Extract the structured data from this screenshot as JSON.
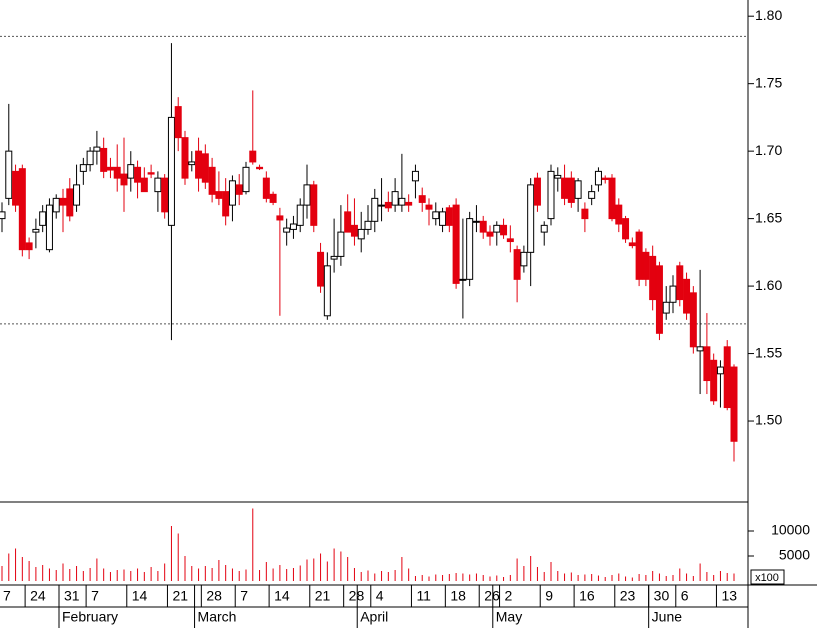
{
  "chart_data": {
    "type": "candlestick",
    "up_color": "#ffffff",
    "down_color": "#e3000f",
    "line_color": "#000000",
    "ylim": [
      1.44,
      1.812
    ],
    "yticks": [
      {
        "value": 1.5,
        "label": "1.50"
      },
      1.55,
      {
        "value": 1.6,
        "label": "1.60"
      },
      1.65,
      {
        "value": 1.7,
        "label": "1.70"
      },
      1.75,
      {
        "value": 1.8,
        "label": "1.80"
      }
    ],
    "reference_lines": [
      1.785,
      1.572
    ],
    "volume_color": "#e3000f",
    "volume_ylim": [
      0,
      15800
    ],
    "volume_yticks": [
      5000,
      10000
    ],
    "volume_unit": "x100",
    "categories": [
      "7",
      null,
      null,
      null,
      "24",
      null,
      null,
      null,
      null,
      "31",
      null,
      null,
      null,
      "7",
      null,
      null,
      null,
      null,
      null,
      "14",
      null,
      null,
      null,
      null,
      null,
      "21",
      null,
      null,
      null,
      null,
      "28",
      null,
      null,
      null,
      null,
      "7",
      null,
      null,
      null,
      null,
      "14",
      null,
      null,
      null,
      null,
      null,
      "21",
      null,
      null,
      null,
      null,
      "28",
      null,
      null,
      null,
      "4",
      null,
      null,
      null,
      null,
      null,
      "11",
      null,
      null,
      null,
      null,
      "18",
      null,
      null,
      null,
      null,
      "26",
      null,
      null,
      "2",
      null,
      null,
      null,
      null,
      null,
      "9",
      null,
      null,
      null,
      null,
      "16",
      null,
      null,
      null,
      null,
      null,
      "23",
      null,
      null,
      null,
      null,
      "30",
      null,
      null,
      null,
      "6",
      null,
      null,
      null,
      null,
      null,
      "13",
      null,
      null
    ],
    "months": [
      null,
      null,
      null,
      null,
      null,
      null,
      null,
      null,
      null,
      "February",
      null,
      null,
      null,
      null,
      null,
      null,
      null,
      null,
      null,
      null,
      null,
      null,
      null,
      null,
      null,
      null,
      null,
      null,
      null,
      "March",
      null,
      null,
      null,
      null,
      null,
      null,
      null,
      null,
      null,
      null,
      null,
      null,
      null,
      null,
      null,
      null,
      null,
      null,
      null,
      null,
      null,
      null,
      null,
      "April",
      null,
      null,
      null,
      null,
      null,
      null,
      null,
      null,
      null,
      null,
      null,
      null,
      null,
      null,
      null,
      null,
      null,
      null,
      null,
      "May",
      null,
      null,
      null,
      null,
      null,
      null,
      null,
      null,
      null,
      null,
      null,
      null,
      null,
      null,
      null,
      null,
      null,
      null,
      null,
      null,
      null,
      null,
      "June",
      null,
      null,
      null,
      null,
      null,
      null,
      null,
      null,
      null,
      null,
      null,
      null
    ],
    "candles": [
      [
        1.65,
        1.662,
        1.64,
        1.655
      ],
      [
        1.665,
        1.735,
        1.66,
        1.7
      ],
      [
        1.685,
        1.69,
        1.655,
        1.66
      ],
      [
        1.687,
        1.69,
        1.622,
        1.627
      ],
      [
        1.632,
        1.636,
        1.62,
        1.627
      ],
      [
        1.64,
        1.65,
        1.628,
        1.642
      ],
      [
        1.645,
        1.66,
        1.64,
        1.655
      ],
      [
        1.627,
        1.665,
        1.625,
        1.66
      ],
      [
        1.655,
        1.668,
        1.65,
        1.665
      ],
      [
        1.665,
        1.672,
        1.64,
        1.66
      ],
      [
        1.672,
        1.68,
        1.648,
        1.652
      ],
      [
        1.66,
        1.69,
        1.655,
        1.675
      ],
      [
        1.685,
        1.695,
        1.675,
        1.69
      ],
      [
        1.69,
        1.703,
        1.685,
        1.7
      ],
      [
        1.7,
        1.715,
        1.69,
        1.703
      ],
      [
        1.702,
        1.71,
        1.68,
        1.685
      ],
      [
        1.688,
        1.695,
        1.68,
        1.686
      ],
      [
        1.688,
        1.705,
        1.67,
        1.68
      ],
      [
        1.683,
        1.71,
        1.655,
        1.675
      ],
      [
        1.68,
        1.7,
        1.67,
        1.69
      ],
      [
        1.688,
        1.693,
        1.665,
        1.677
      ],
      [
        1.68,
        1.688,
        1.67,
        1.67
      ],
      [
        1.684,
        1.69,
        1.68,
        1.683
      ],
      [
        1.67,
        1.685,
        1.655,
        1.68
      ],
      [
        1.68,
        1.683,
        1.65,
        1.655
      ],
      [
        1.645,
        1.78,
        1.56,
        1.725
      ],
      [
        1.733,
        1.74,
        1.7,
        1.71
      ],
      [
        1.71,
        1.715,
        1.675,
        1.68
      ],
      [
        1.69,
        1.7,
        1.685,
        1.692
      ],
      [
        1.7,
        1.71,
        1.67,
        1.68
      ],
      [
        1.698,
        1.705,
        1.672,
        1.677
      ],
      [
        1.688,
        1.695,
        1.662,
        1.668
      ],
      [
        1.67,
        1.685,
        1.66,
        1.665
      ],
      [
        1.67,
        1.68,
        1.645,
        1.652
      ],
      [
        1.66,
        1.682,
        1.648,
        1.678
      ],
      [
        1.675,
        1.683,
        1.66,
        1.668
      ],
      [
        1.67,
        1.692,
        1.668,
        1.688
      ],
      [
        1.7,
        1.745,
        1.69,
        1.692
      ],
      [
        1.688,
        1.69,
        1.686,
        1.687
      ],
      [
        1.68,
        1.685,
        1.662,
        1.665
      ],
      [
        1.668,
        1.67,
        1.66,
        1.662
      ],
      [
        1.652,
        1.658,
        1.578,
        1.649
      ],
      [
        1.64,
        1.65,
        1.63,
        1.643
      ],
      [
        1.642,
        1.652,
        1.635,
        1.646
      ],
      [
        1.645,
        1.665,
        1.64,
        1.66
      ],
      [
        1.66,
        1.69,
        1.65,
        1.675
      ],
      [
        1.675,
        1.678,
        1.64,
        1.645
      ],
      [
        1.625,
        1.632,
        1.595,
        1.6
      ],
      [
        1.578,
        1.625,
        1.575,
        1.615
      ],
      [
        1.62,
        1.65,
        1.61,
        1.622
      ],
      [
        1.622,
        1.66,
        1.615,
        1.64
      ],
      [
        1.655,
        1.668,
        1.64,
        1.64
      ],
      [
        1.645,
        1.665,
        1.63,
        1.637
      ],
      [
        1.635,
        1.655,
        1.625,
        1.642
      ],
      [
        1.642,
        1.66,
        1.638,
        1.648
      ],
      [
        1.648,
        1.672,
        1.64,
        1.665
      ],
      [
        1.66,
        1.68,
        1.648,
        1.66
      ],
      [
        1.662,
        1.67,
        1.655,
        1.658
      ],
      [
        1.66,
        1.68,
        1.655,
        1.67
      ],
      [
        1.66,
        1.698,
        1.655,
        1.665
      ],
      [
        1.662,
        1.668,
        1.655,
        1.66
      ],
      [
        1.678,
        1.69,
        1.665,
        1.685
      ],
      [
        1.667,
        1.673,
        1.655,
        1.662
      ],
      [
        1.66,
        1.665,
        1.645,
        1.657
      ],
      [
        1.65,
        1.662,
        1.645,
        1.655
      ],
      [
        1.645,
        1.658,
        1.64,
        1.655
      ],
      [
        1.658,
        1.66,
        1.64,
        1.645
      ],
      [
        1.66,
        1.665,
        1.598,
        1.602
      ],
      [
        1.605,
        1.65,
        1.576,
        1.605
      ],
      [
        1.605,
        1.655,
        1.6,
        1.65
      ],
      [
        1.648,
        1.66,
        1.64,
        1.648
      ],
      [
        1.648,
        1.652,
        1.635,
        1.64
      ],
      [
        1.64,
        1.645,
        1.63,
        1.637
      ],
      [
        1.64,
        1.648,
        1.63,
        1.645
      ],
      [
        1.645,
        1.65,
        1.635,
        1.638
      ],
      [
        1.635,
        1.645,
        1.625,
        1.633
      ],
      [
        1.627,
        1.63,
        1.588,
        1.605
      ],
      [
        1.615,
        1.63,
        1.61,
        1.625
      ],
      [
        1.625,
        1.68,
        1.6,
        1.675
      ],
      [
        1.68,
        1.684,
        1.655,
        1.66
      ],
      [
        1.64,
        1.648,
        1.63,
        1.645
      ],
      [
        1.65,
        1.69,
        1.645,
        1.685
      ],
      [
        1.68,
        1.688,
        1.67,
        1.682
      ],
      [
        1.68,
        1.69,
        1.66,
        1.665
      ],
      [
        1.68,
        1.685,
        1.658,
        1.662
      ],
      [
        1.665,
        1.68,
        1.655,
        1.678
      ],
      [
        1.657,
        1.662,
        1.64,
        1.65
      ],
      [
        1.665,
        1.675,
        1.66,
        1.67
      ],
      [
        1.675,
        1.688,
        1.67,
        1.685
      ],
      [
        1.68,
        1.682,
        1.676,
        1.679
      ],
      [
        1.68,
        1.683,
        1.648,
        1.65
      ],
      [
        1.66,
        1.665,
        1.64,
        1.646
      ],
      [
        1.65,
        1.652,
        1.632,
        1.635
      ],
      [
        1.632,
        1.636,
        1.628,
        1.63
      ],
      [
        1.64,
        1.642,
        1.6,
        1.605
      ],
      [
        1.625,
        1.628,
        1.6,
        1.605
      ],
      [
        1.622,
        1.63,
        1.582,
        1.59
      ],
      [
        1.615,
        1.618,
        1.56,
        1.565
      ],
      [
        1.58,
        1.6,
        1.575,
        1.588
      ],
      [
        1.588,
        1.608,
        1.58,
        1.6
      ],
      [
        1.615,
        1.618,
        1.585,
        1.59
      ],
      [
        1.605,
        1.61,
        1.575,
        1.58
      ],
      [
        1.595,
        1.6,
        1.55,
        1.555
      ],
      [
        1.552,
        1.612,
        1.52,
        1.555
      ],
      [
        1.555,
        1.58,
        1.52,
        1.53
      ],
      [
        1.545,
        1.55,
        1.512,
        1.515
      ],
      [
        1.535,
        1.545,
        1.51,
        1.54
      ],
      [
        1.555,
        1.56,
        1.508,
        1.51
      ],
      [
        1.54,
        1.542,
        1.47,
        1.485
      ]
    ],
    "volumes": [
      3000,
      5500,
      6500,
      4800,
      4000,
      2800,
      3200,
      2500,
      2200,
      3500,
      2400,
      3000,
      2000,
      2600,
      4500,
      2500,
      1800,
      2200,
      2300,
      2000,
      2500,
      1800,
      2800,
      2000,
      3500,
      11000,
      9500,
      5000,
      3000,
      2500,
      3000,
      2600,
      4200,
      3200,
      2500,
      2000,
      2300,
      14500,
      2200,
      3800,
      2500,
      3200,
      2400,
      2600,
      3100,
      4300,
      4500,
      5500,
      3900,
      6500,
      5900,
      4800,
      2600,
      1800,
      2100,
      1500,
      2000,
      1800,
      2200,
      4800,
      2500,
      1000,
      1200,
      900,
      1300,
      1200,
      1400,
      1600,
      1500,
      1300,
      1500,
      1200,
      900,
      1100,
      800,
      1200,
      4500,
      3000,
      5000,
      2800,
      1800,
      3800,
      2000,
      1500,
      1700,
      1200,
      1300,
      1400,
      1100,
      800,
      1200,
      1500,
      900,
      700,
      1400,
      1200,
      2000,
      1500,
      1000,
      1200,
      2500,
      1500,
      1000,
      3500,
      1800,
      1200,
      2000,
      1600,
      1500
    ]
  }
}
